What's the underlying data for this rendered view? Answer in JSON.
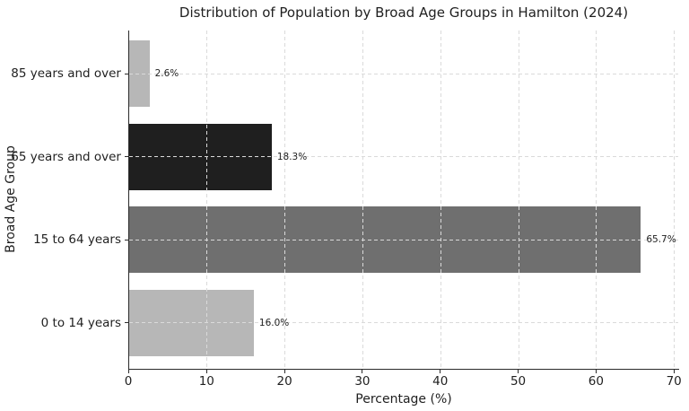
{
  "chart_data": {
    "type": "bar",
    "orientation": "horizontal",
    "title": "Distribution of Population by Broad Age Groups in Hamilton (2024)",
    "xlabel": "Percentage (%)",
    "ylabel": "Broad Age Group",
    "categories": [
      "85 years and over",
      "65 years and over",
      "15 to 64 years",
      "0 to 14 years"
    ],
    "values": [
      2.6,
      18.3,
      65.7,
      16.0
    ],
    "value_labels": [
      "2.6%",
      "18.3%",
      "65.7%",
      "16.0%"
    ],
    "bar_colors": [
      "#b7b7b7",
      "#1f1f1f",
      "#6f6f6f",
      "#b7b7b7"
    ],
    "xlim": [
      0,
      70.5
    ],
    "xticks": [
      0,
      10,
      20,
      30,
      40,
      50,
      60,
      70
    ],
    "grid": "dashed",
    "grid_color": "#dadada",
    "background": "#ffffff",
    "legend": null
  }
}
